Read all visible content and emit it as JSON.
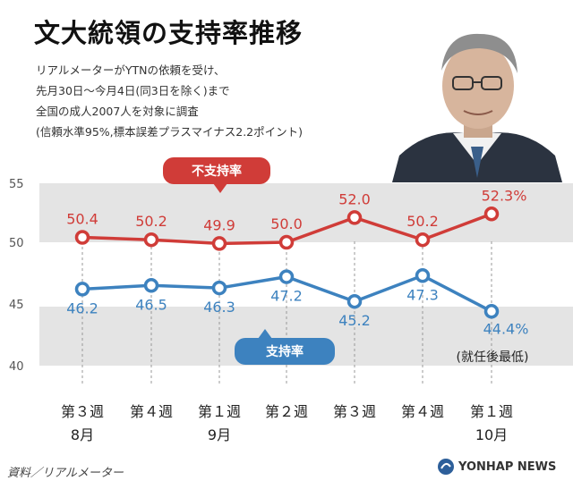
{
  "title": "文大統領の支持率推移",
  "subtitle_lines": [
    "リアルメーターがYTNの依頼を受け、",
    "先月30日～今月4日(同3日を除く)まで",
    "全国の成人2007人を対象に調査",
    "(信頼水準95%,標本誤差プラスマイナス2.2ポイント)"
  ],
  "source": "資料／リアルメーター",
  "credit": "YONHAP NEWS",
  "colors": {
    "red": "#d03c38",
    "blue": "#3d82bf",
    "band": "#e4e4e4"
  },
  "chart_data": {
    "type": "line",
    "categories": [
      "第３週",
      "第４週",
      "第１週",
      "第２週",
      "第３週",
      "第４週",
      "第１週"
    ],
    "month_labels": [
      "8月",
      "",
      "9月",
      "",
      "",
      "",
      "10月"
    ],
    "series": [
      {
        "name": "不支持率",
        "color": "#d03c38",
        "values": [
          50.4,
          50.2,
          49.9,
          50.0,
          52.0,
          50.2,
          52.3
        ],
        "value_labels": [
          "50.4",
          "50.2",
          "49.9",
          "50.0",
          "52.0",
          "50.2",
          "52.3%"
        ]
      },
      {
        "name": "支持率",
        "color": "#3d82bf",
        "values": [
          46.2,
          46.5,
          46.3,
          47.2,
          45.2,
          47.3,
          44.4
        ],
        "value_labels": [
          "46.2",
          "46.5",
          "46.3",
          "47.2",
          "45.2",
          "47.3",
          "44.4%"
        ]
      }
    ],
    "yticks": [
      "55",
      "50",
      "45",
      "40"
    ],
    "ylim": [
      40,
      55
    ],
    "annotation": "(就任後最低)",
    "grid": false,
    "legend": "inline labels"
  }
}
